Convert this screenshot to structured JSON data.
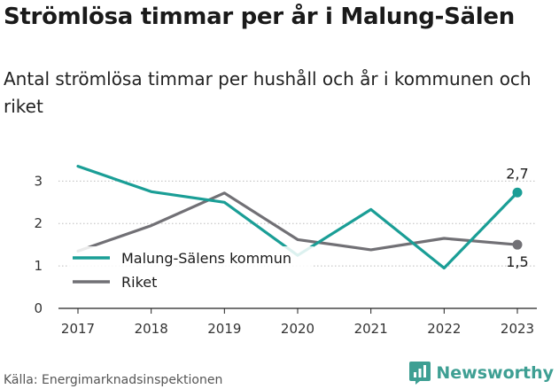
{
  "title": "Strömlösa timmar per år i Malung-Sälen",
  "subtitle": "Antal strömlösa timmar per hushåll och år i kommunen och riket",
  "source": "Källa: Energimarknadsinspektionen",
  "brand": "Newsworthy",
  "chart_data": {
    "type": "line",
    "x": [
      "2017",
      "2018",
      "2019",
      "2020",
      "2021",
      "2022",
      "2023"
    ],
    "ylim": [
      0,
      3.3
    ],
    "yticks": [
      0,
      1,
      2,
      3
    ],
    "grid": "horizontal dotted",
    "legend_position": "bottom-left",
    "series": [
      {
        "name": "Malung-Sälens kommun",
        "color": "#1a9e96",
        "values": [
          3.35,
          2.75,
          2.5,
          1.25,
          2.33,
          0.95,
          2.73
        ],
        "end_label": "2,7"
      },
      {
        "name": "Riket",
        "color": "#717075",
        "values": [
          1.35,
          1.95,
          2.72,
          1.62,
          1.38,
          1.65,
          1.5
        ],
        "end_label": "1,5"
      }
    ]
  }
}
